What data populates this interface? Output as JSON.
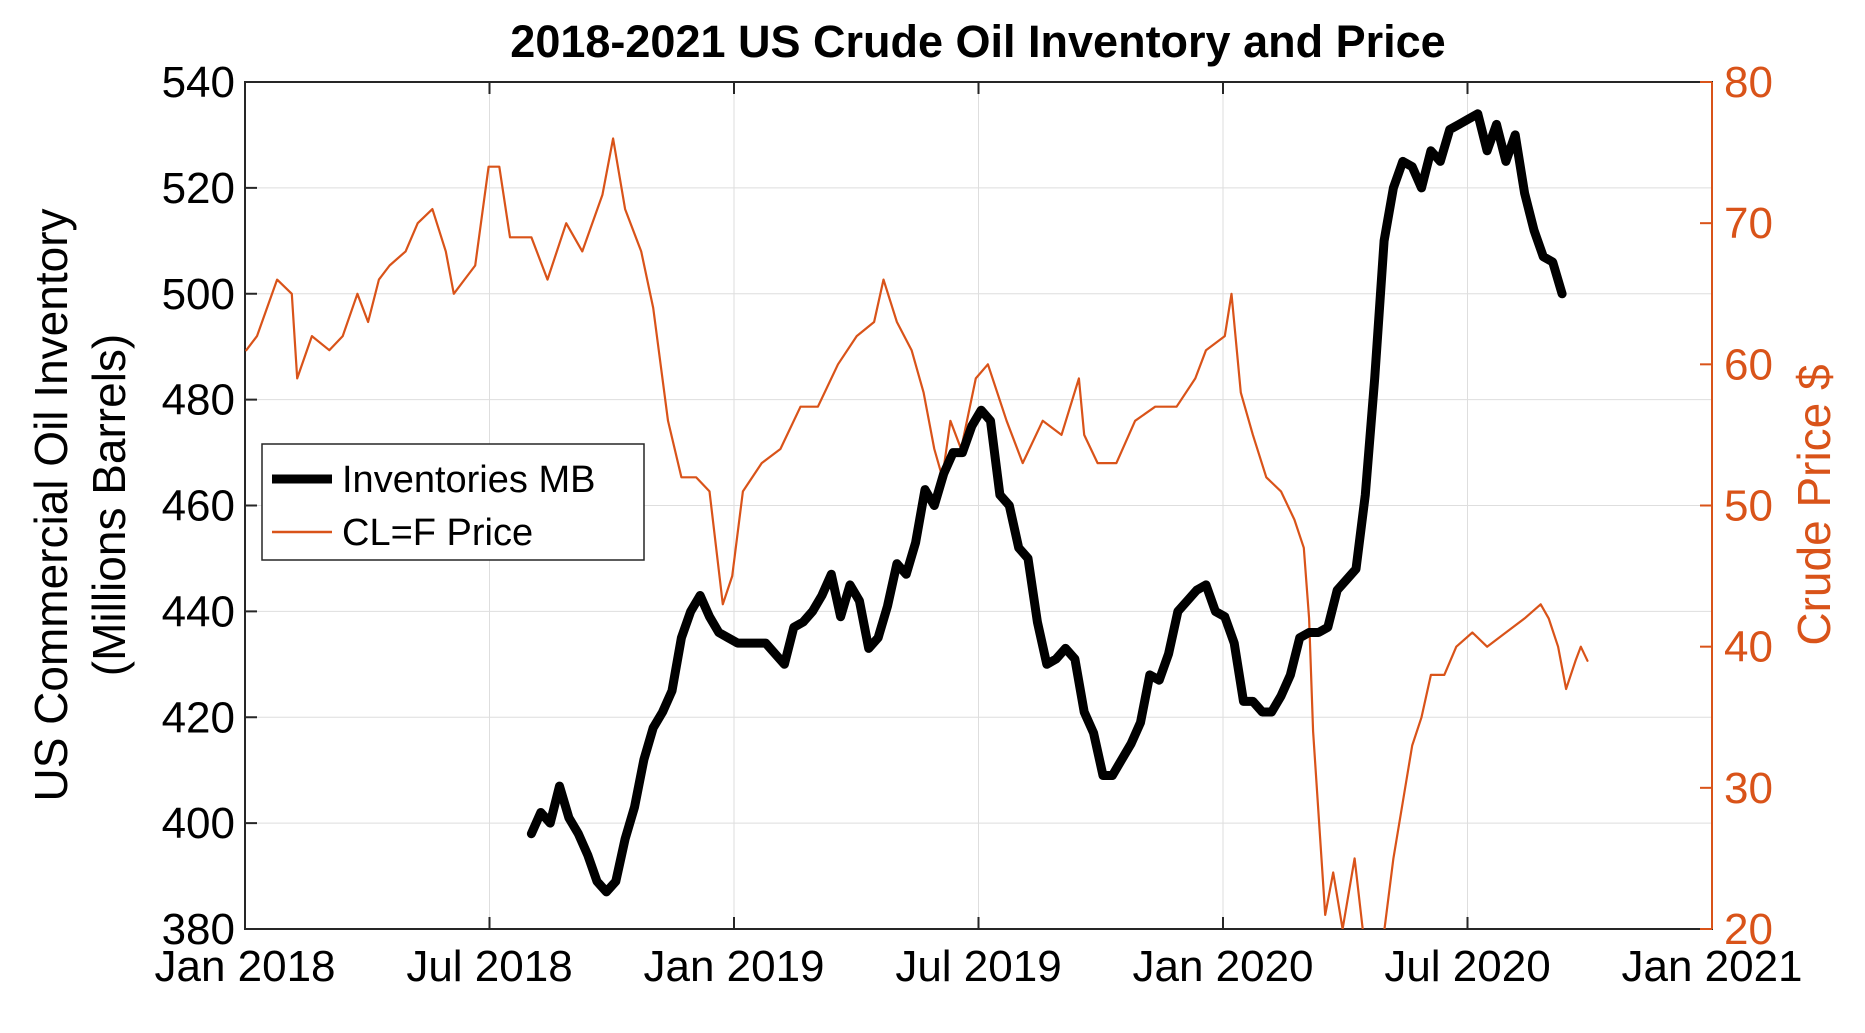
{
  "chart_data": {
    "type": "line",
    "title": "2018-2021 US Crude Oil Inventory and Price",
    "x_axis": {
      "ticks": [
        "Jan 2018",
        "Jul 2018",
        "Jan 2019",
        "Jul 2019",
        "Jan 2020",
        "Jul 2020",
        "Jan 2021"
      ],
      "range": [
        "2018-01-01",
        "2021-01-01"
      ]
    },
    "y_left": {
      "label_line1": "US Commercial Oil Inventory",
      "label_line2": "(Millions Barrels)",
      "range": [
        380,
        540
      ],
      "ticks": [
        "540",
        "520",
        "500",
        "480",
        "460",
        "440",
        "420",
        "400",
        "380"
      ],
      "color": "#000000"
    },
    "y_right": {
      "label": "Crude Price $",
      "range": [
        20,
        80
      ],
      "ticks": [
        "80",
        "70",
        "60",
        "50",
        "40",
        "30",
        "20"
      ],
      "color": "#D95319"
    },
    "grid": true,
    "legend": {
      "position": "center-left",
      "entries": [
        "Inventories MB",
        "CL=F Price"
      ]
    },
    "series": [
      {
        "name": "Inventories MB",
        "axis": "left",
        "color": "#000000",
        "x": [
          "2018-08-03",
          "2018-08-10",
          "2018-08-17",
          "2018-08-24",
          "2018-08-31",
          "2018-09-07",
          "2018-09-14",
          "2018-09-21",
          "2018-09-28",
          "2018-10-05",
          "2018-10-12",
          "2018-10-19",
          "2018-10-26",
          "2018-11-02",
          "2018-11-09",
          "2018-11-16",
          "2018-11-23",
          "2018-11-30",
          "2018-12-07",
          "2018-12-14",
          "2018-12-21",
          "2018-12-28",
          "2019-01-04",
          "2019-01-11",
          "2019-01-18",
          "2019-01-25",
          "2019-02-01",
          "2019-02-08",
          "2019-02-15",
          "2019-02-22",
          "2019-03-01",
          "2019-03-08",
          "2019-03-15",
          "2019-03-22",
          "2019-03-29",
          "2019-04-05",
          "2019-04-12",
          "2019-04-19",
          "2019-04-26",
          "2019-05-03",
          "2019-05-10",
          "2019-05-17",
          "2019-05-24",
          "2019-05-31",
          "2019-06-07",
          "2019-06-14",
          "2019-06-21",
          "2019-06-28",
          "2019-07-05",
          "2019-07-12",
          "2019-07-19",
          "2019-07-26",
          "2019-08-02",
          "2019-08-09",
          "2019-08-16",
          "2019-08-23",
          "2019-08-30",
          "2019-09-06",
          "2019-09-13",
          "2019-09-20",
          "2019-09-27",
          "2019-10-04",
          "2019-10-11",
          "2019-10-18",
          "2019-10-25",
          "2019-11-01",
          "2019-11-08",
          "2019-11-15",
          "2019-11-22",
          "2019-11-29",
          "2019-12-06",
          "2019-12-13",
          "2019-12-20",
          "2019-12-27",
          "2020-01-03",
          "2020-01-10",
          "2020-01-17",
          "2020-01-24",
          "2020-01-31",
          "2020-02-07",
          "2020-02-14",
          "2020-02-21",
          "2020-02-28",
          "2020-03-06",
          "2020-03-13",
          "2020-03-20",
          "2020-03-27",
          "2020-04-03",
          "2020-04-10",
          "2020-04-17",
          "2020-04-24",
          "2020-05-01",
          "2020-05-08",
          "2020-05-15",
          "2020-05-22",
          "2020-05-29",
          "2020-06-05",
          "2020-06-12",
          "2020-06-19",
          "2020-06-26",
          "2020-07-03",
          "2020-07-10",
          "2020-07-17",
          "2020-07-24",
          "2020-07-31",
          "2020-08-07",
          "2020-08-14",
          "2020-08-21",
          "2020-08-28",
          "2020-09-04",
          "2020-09-11"
        ],
        "values": [
          398,
          402,
          400,
          407,
          401,
          398,
          394,
          389,
          387,
          389,
          397,
          403,
          412,
          418,
          421,
          425,
          435,
          440,
          443,
          439,
          436,
          435,
          434,
          434,
          434,
          434,
          432,
          430,
          437,
          438,
          440,
          443,
          447,
          439,
          445,
          442,
          433,
          435,
          441,
          449,
          447,
          453,
          463,
          460,
          466,
          470,
          470,
          475,
          478,
          476,
          462,
          460,
          452,
          450,
          438,
          430,
          431,
          433,
          431,
          421,
          417,
          409,
          409,
          412,
          415,
          419,
          428,
          427,
          432,
          440,
          442,
          444,
          445,
          440,
          439,
          434,
          423,
          423,
          421,
          421,
          424,
          428,
          435,
          436,
          436,
          437,
          444,
          446,
          448,
          462,
          484,
          510,
          520,
          525,
          524,
          520,
          527,
          525,
          531,
          532,
          533,
          534,
          527,
          532,
          525,
          530,
          519,
          512,
          507,
          506,
          500
        ]
      },
      {
        "name": "CL=F Price",
        "axis": "right",
        "color": "#D95319",
        "x": [
          "2018-01-02",
          "2018-01-10",
          "2018-01-25",
          "2018-02-05",
          "2018-02-09",
          "2018-02-20",
          "2018-03-05",
          "2018-03-15",
          "2018-03-26",
          "2018-04-03",
          "2018-04-11",
          "2018-04-19",
          "2018-05-01",
          "2018-05-10",
          "2018-05-21",
          "2018-05-31",
          "2018-06-06",
          "2018-06-14",
          "2018-06-22",
          "2018-07-02",
          "2018-07-10",
          "2018-07-18",
          "2018-07-26",
          "2018-08-03",
          "2018-08-15",
          "2018-08-29",
          "2018-09-10",
          "2018-09-25",
          "2018-10-03",
          "2018-10-12",
          "2018-10-24",
          "2018-11-02",
          "2018-11-13",
          "2018-11-23",
          "2018-12-04",
          "2018-12-14",
          "2018-12-24",
          "2018-12-31",
          "2019-01-08",
          "2019-01-22",
          "2019-02-05",
          "2019-02-20",
          "2019-03-05",
          "2019-03-20",
          "2019-04-03",
          "2019-04-16",
          "2019-04-23",
          "2019-05-03",
          "2019-05-14",
          "2019-05-23",
          "2019-05-31",
          "2019-06-06",
          "2019-06-12",
          "2019-06-20",
          "2019-07-01",
          "2019-07-10",
          "2019-07-24",
          "2019-08-05",
          "2019-08-20",
          "2019-09-03",
          "2019-09-16",
          "2019-09-20",
          "2019-09-30",
          "2019-10-14",
          "2019-10-28",
          "2019-11-12",
          "2019-11-28",
          "2019-12-12",
          "2019-12-20",
          "2020-01-03",
          "2020-01-08",
          "2020-01-15",
          "2020-01-24",
          "2020-02-03",
          "2020-02-14",
          "2020-02-24",
          "2020-03-02",
          "2020-03-06",
          "2020-03-09",
          "2020-03-18",
          "2020-03-24",
          "2020-03-31",
          "2020-04-09",
          "2020-04-15",
          "2020-04-20",
          "2020-04-24",
          "2020-04-30",
          "2020-05-08",
          "2020-05-15",
          "2020-05-22",
          "2020-05-29",
          "2020-06-05",
          "2020-06-15",
          "2020-06-24",
          "2020-07-06",
          "2020-07-17",
          "2020-07-31",
          "2020-08-14",
          "2020-08-26",
          "2020-09-01",
          "2020-09-08",
          "2020-09-14",
          "2020-09-21",
          "2020-09-25",
          "2020-09-30"
        ],
        "values": [
          61,
          62,
          66,
          65,
          59,
          62,
          61,
          62,
          65,
          63,
          66,
          67,
          68,
          70,
          71,
          68,
          65,
          66,
          67,
          74,
          74,
          69,
          69,
          69,
          66,
          70,
          68,
          72,
          76,
          71,
          68,
          64,
          56,
          52,
          52,
          51,
          43,
          45,
          51,
          53,
          54,
          57,
          57,
          60,
          62,
          63,
          66,
          63,
          61,
          58,
          54,
          52,
          56,
          54,
          59,
          60,
          56,
          53,
          56,
          55,
          59,
          55,
          53,
          53,
          56,
          57,
          57,
          59,
          61,
          62,
          65,
          58,
          55,
          52,
          51,
          49,
          47,
          42,
          34,
          21,
          24,
          20,
          25,
          20,
          15,
          17,
          19,
          25,
          29,
          33,
          35,
          38,
          38,
          40,
          41,
          40,
          41,
          42,
          43,
          42,
          40,
          37,
          39,
          40,
          39
        ]
      }
    ]
  }
}
